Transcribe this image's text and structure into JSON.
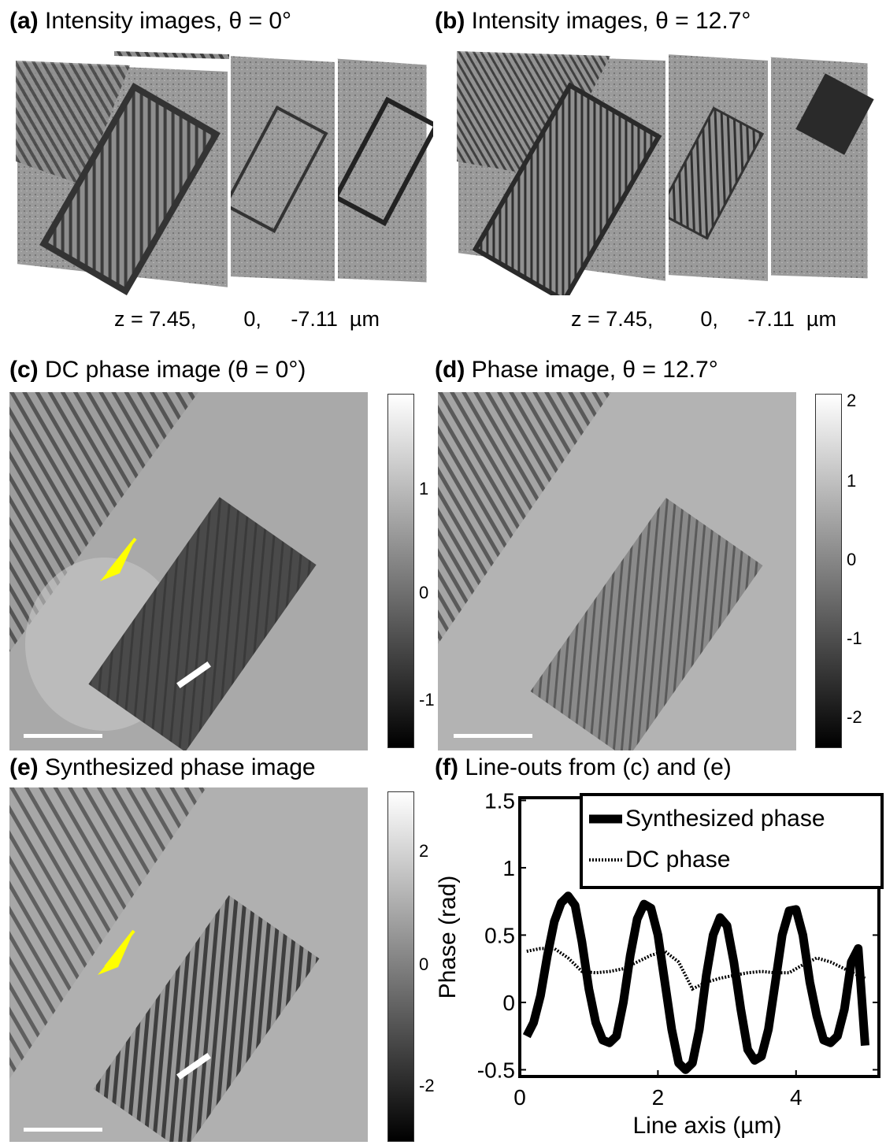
{
  "panels": {
    "a": {
      "letter": "(a)",
      "title": "Intensity images, θ = 0°",
      "z_label": "z = 7.45,        0,     -7.11  µm"
    },
    "b": {
      "letter": "(b)",
      "title": "Intensity images, θ = 12.7°",
      "z_label": "z = 7.45,        0,     -7.11  µm"
    },
    "c": {
      "letter": "(c)",
      "title": "DC phase image  (θ = 0°)",
      "colorbar_ticks": [
        "1",
        "0",
        "-1"
      ]
    },
    "d": {
      "letter": "(d)",
      "title": "Phase image, θ = 12.7°",
      "colorbar_ticks": [
        "2",
        "1",
        "0",
        "-1",
        "-2"
      ]
    },
    "e": {
      "letter": "(e)",
      "title": "Synthesized phase image",
      "colorbar_ticks": [
        "2",
        "0",
        "-2"
      ]
    },
    "f": {
      "letter": "(f)",
      "title": "Line-outs from (c) and (e)"
    }
  },
  "colors": {
    "arrow": "#ffff00",
    "scale_bar": "#ffffff"
  },
  "chart_data": {
    "type": "line",
    "xlabel": "Line axis (µm)",
    "ylabel": "Phase (rad)",
    "xlim": [
      0,
      5.2
    ],
    "ylim": [
      -0.55,
      1.52
    ],
    "xticks": [
      "0",
      "2",
      "4"
    ],
    "yticks": [
      "-0.5",
      "0",
      "0.5",
      "1",
      "1.5"
    ],
    "legend_position": "top-right",
    "series": [
      {
        "name": "Synthesized phase",
        "style": "solid-thick",
        "x": [
          0.1,
          0.2,
          0.3,
          0.4,
          0.5,
          0.6,
          0.7,
          0.8,
          0.9,
          1.0,
          1.1,
          1.2,
          1.3,
          1.4,
          1.5,
          1.6,
          1.7,
          1.8,
          1.9,
          2.0,
          2.1,
          2.2,
          2.3,
          2.4,
          2.5,
          2.6,
          2.7,
          2.8,
          2.9,
          3.0,
          3.1,
          3.2,
          3.3,
          3.4,
          3.5,
          3.6,
          3.7,
          3.8,
          3.9,
          4.0,
          4.1,
          4.2,
          4.3,
          4.4,
          4.5,
          4.6,
          4.7,
          4.8,
          4.9,
          5.0
        ],
        "y": [
          -0.25,
          -0.15,
          0.05,
          0.35,
          0.6,
          0.74,
          0.79,
          0.72,
          0.45,
          0.1,
          -0.15,
          -0.28,
          -0.3,
          -0.25,
          0.0,
          0.35,
          0.62,
          0.73,
          0.7,
          0.5,
          0.15,
          -0.2,
          -0.45,
          -0.5,
          -0.45,
          -0.2,
          0.2,
          0.5,
          0.63,
          0.57,
          0.3,
          -0.05,
          -0.35,
          -0.43,
          -0.4,
          -0.2,
          0.15,
          0.5,
          0.68,
          0.69,
          0.5,
          0.15,
          -0.1,
          -0.28,
          -0.3,
          -0.25,
          -0.05,
          0.3,
          0.4,
          -0.32
        ]
      },
      {
        "name": "DC phase",
        "style": "dotted",
        "x": [
          0.1,
          0.3,
          0.5,
          0.7,
          0.9,
          1.1,
          1.3,
          1.5,
          1.7,
          1.9,
          2.1,
          2.3,
          2.5,
          2.7,
          2.9,
          3.1,
          3.3,
          3.5,
          3.7,
          3.9,
          4.1,
          4.3,
          4.5,
          4.7,
          4.9,
          5.0
        ],
        "y": [
          0.38,
          0.4,
          0.4,
          0.33,
          0.23,
          0.22,
          0.23,
          0.25,
          0.3,
          0.35,
          0.38,
          0.3,
          0.1,
          0.15,
          0.18,
          0.2,
          0.22,
          0.23,
          0.22,
          0.22,
          0.28,
          0.33,
          0.3,
          0.25,
          0.2,
          0.18
        ]
      }
    ]
  }
}
